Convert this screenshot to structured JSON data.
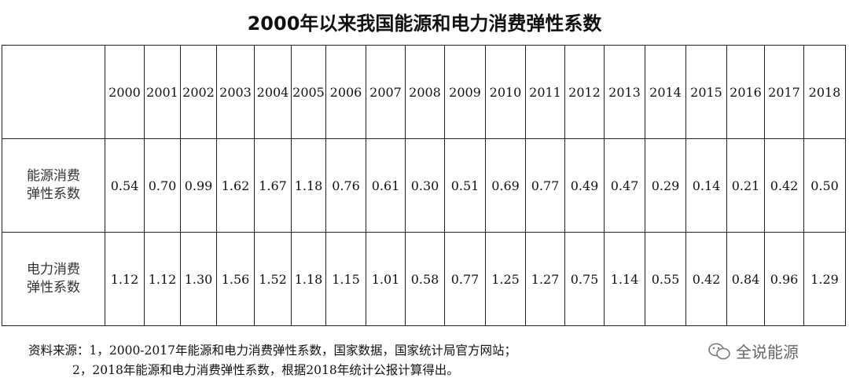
{
  "title": "2000年以来我国能源和电力消费弹性系数",
  "chart_data": {
    "type": "table",
    "title": "2000年以来我国能源和电力消费弹性系数",
    "columns": [
      "2000",
      "2001",
      "2002",
      "2003",
      "2004",
      "2005",
      "2006",
      "2007",
      "2008",
      "2009",
      "2010",
      "2011",
      "2012",
      "2013",
      "2014",
      "2015",
      "2016",
      "2017",
      "2018"
    ],
    "rows": [
      {
        "label_line1": "能源消费",
        "label_line2": "弹性系数",
        "values": [
          "0.54",
          "0.70",
          "0.99",
          "1.62",
          "1.67",
          "1.18",
          "0.76",
          "0.61",
          "0.30",
          "0.51",
          "0.69",
          "0.77",
          "0.49",
          "0.47",
          "0.29",
          "0.14",
          "0.21",
          "0.42",
          "0.50"
        ]
      },
      {
        "label_line1": "电力消费",
        "label_line2": "弹性系数",
        "values": [
          "1.12",
          "1.12",
          "1.30",
          "1.56",
          "1.52",
          "1.18",
          "1.15",
          "1.01",
          "0.58",
          "0.77",
          "1.25",
          "1.27",
          "0.75",
          "1.14",
          "0.55",
          "0.42",
          "0.84",
          "0.96",
          "1.29"
        ]
      }
    ]
  },
  "footer": {
    "line1": "资料来源：1，2000-2017年能源和电力消费弹性系数，国家数据，国家统计局官方网站；",
    "line2": "2，2018年能源和电力消费弹性系数，根据2018年统计公报计算得出。"
  },
  "watermark": {
    "text": "全说能源",
    "icon": "wechat-icon"
  }
}
